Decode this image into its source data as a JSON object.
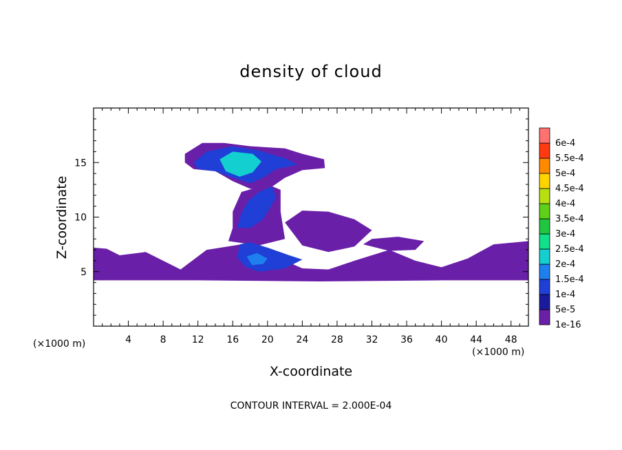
{
  "chart_data": {
    "type": "heatmap",
    "title": "density of cloud",
    "xlabel": "X-coordinate",
    "ylabel": "Z-coordinate",
    "x_unit_left": "(×1000 m)",
    "x_unit_right": "(×1000 m)",
    "xlim": [
      0,
      50
    ],
    "ylim": [
      0,
      20
    ],
    "x_ticks": [
      4,
      8,
      12,
      16,
      20,
      24,
      28,
      32,
      36,
      40,
      44,
      48
    ],
    "y_ticks": [
      5,
      10,
      15
    ],
    "footer": "CONTOUR INTERVAL = 2.000E-04",
    "colorbar": {
      "labels": [
        "1e-16",
        "5e-5",
        "1e-4",
        "1.5e-4",
        "2e-4",
        "2.5e-4",
        "3e-4",
        "3.5e-4",
        "4e-4",
        "4.5e-4",
        "5e-4",
        "5.5e-4",
        "6e-4"
      ],
      "colors": [
        "#6a1fa8",
        "#1a1a9c",
        "#1f3fd6",
        "#1e7fef",
        "#14cfcf",
        "#10e08a",
        "#20c640",
        "#5ed018",
        "#b8e010",
        "#ffd400",
        "#ff8a00",
        "#ff3a10",
        "#ff7070"
      ]
    },
    "regions": [
      {
        "name": "lower layer",
        "level": "1e-16",
        "points": [
          [
            0,
            4.2
          ],
          [
            12,
            4.2
          ],
          [
            26,
            4.1
          ],
          [
            40,
            4.2
          ],
          [
            50,
            4.2
          ],
          [
            50,
            7.8
          ],
          [
            46,
            7.5
          ],
          [
            43,
            6.2
          ],
          [
            40,
            5.4
          ],
          [
            37,
            6.0
          ],
          [
            34,
            7.0
          ],
          [
            30,
            6.0
          ],
          [
            27,
            5.2
          ],
          [
            24,
            5.3
          ],
          [
            22,
            6.0
          ],
          [
            17,
            7.5
          ],
          [
            13,
            7.0
          ],
          [
            10,
            5.2
          ],
          [
            6,
            6.8
          ],
          [
            3,
            6.5
          ],
          [
            1.5,
            7.1
          ],
          [
            0,
            7.2
          ]
        ]
      },
      {
        "name": "mid patch",
        "level": "1e-16",
        "points": [
          [
            24,
            7.4
          ],
          [
            27,
            6.8
          ],
          [
            30,
            7.3
          ],
          [
            32,
            8.8
          ],
          [
            30,
            9.8
          ],
          [
            27,
            10.5
          ],
          [
            24,
            10.6
          ],
          [
            22,
            9.5
          ]
        ]
      },
      {
        "name": "east patch",
        "level": "1e-16",
        "points": [
          [
            31,
            7.5
          ],
          [
            34,
            6.9
          ],
          [
            37,
            7.0
          ],
          [
            38,
            7.8
          ],
          [
            35,
            8.2
          ],
          [
            32,
            8.0
          ]
        ]
      },
      {
        "name": "column",
        "level": "1e-16",
        "points": [
          [
            15.5,
            7.8
          ],
          [
            19,
            7.4
          ],
          [
            22,
            8.0
          ],
          [
            21.5,
            10.5
          ],
          [
            21.5,
            12.5
          ],
          [
            20,
            13.0
          ],
          [
            17,
            12.3
          ],
          [
            16,
            10.5
          ],
          [
            16,
            9.0
          ]
        ]
      },
      {
        "name": "anvil",
        "level": "1e-16",
        "points": [
          [
            10.5,
            15.8
          ],
          [
            12.5,
            16.8
          ],
          [
            15,
            16.8
          ],
          [
            18,
            16.5
          ],
          [
            22,
            16.3
          ],
          [
            24,
            15.8
          ],
          [
            26.5,
            15.3
          ],
          [
            26.6,
            14.5
          ],
          [
            24,
            14.3
          ],
          [
            22,
            13.6
          ],
          [
            20,
            12.5
          ],
          [
            18,
            12.6
          ],
          [
            16,
            13.3
          ],
          [
            14,
            14.2
          ],
          [
            11.5,
            14.4
          ],
          [
            10.5,
            15.0
          ]
        ]
      },
      {
        "name": "core lower",
        "level": "1e-4",
        "points": [
          [
            16.8,
            7.5
          ],
          [
            18,
            7.7
          ],
          [
            20,
            7.2
          ],
          [
            22.5,
            6.5
          ],
          [
            24,
            6.1
          ],
          [
            22,
            5.3
          ],
          [
            19,
            5.0
          ],
          [
            17.5,
            5.4
          ],
          [
            16.5,
            6.3
          ]
        ]
      },
      {
        "name": "core column",
        "level": "1e-4",
        "points": [
          [
            16.5,
            9.0
          ],
          [
            18,
            9.0
          ],
          [
            19.5,
            9.8
          ],
          [
            21,
            11.8
          ],
          [
            20.5,
            12.8
          ],
          [
            19,
            12.3
          ],
          [
            17.8,
            11.5
          ],
          [
            17,
            10.4
          ]
        ]
      },
      {
        "name": "core anvil",
        "level": "1e-4",
        "points": [
          [
            11.5,
            15.0
          ],
          [
            13,
            16.0
          ],
          [
            16,
            16.5
          ],
          [
            19,
            16.1
          ],
          [
            22,
            15.4
          ],
          [
            23.5,
            14.8
          ],
          [
            21,
            14.4
          ],
          [
            19.5,
            13.6
          ],
          [
            18,
            13.1
          ],
          [
            16,
            13.6
          ],
          [
            14,
            14.2
          ],
          [
            12,
            14.4
          ]
        ]
      },
      {
        "name": "peak anvil",
        "level": "2e-4",
        "points": [
          [
            14.5,
            15.3
          ],
          [
            16,
            16.0
          ],
          [
            18.3,
            15.8
          ],
          [
            19.3,
            15.1
          ],
          [
            18.3,
            14.1
          ],
          [
            16.8,
            13.7
          ],
          [
            15.2,
            14.2
          ]
        ]
      },
      {
        "name": "peak lower",
        "level": "1.5e-4",
        "points": [
          [
            17.6,
            6.4
          ],
          [
            18.8,
            6.7
          ],
          [
            20,
            6.2
          ],
          [
            19.5,
            5.7
          ],
          [
            18.2,
            5.6
          ]
        ]
      }
    ]
  }
}
